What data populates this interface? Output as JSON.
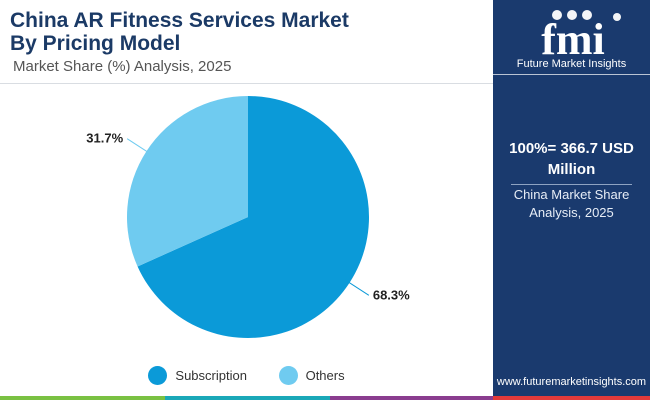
{
  "header": {
    "title_line1": "China AR Fitness Services Market",
    "title_line2": "By Pricing Model",
    "subtitle": "Market Share (%) Analysis, 2025"
  },
  "chart_data": {
    "type": "pie",
    "title": "China AR Fitness Services Market By Pricing Model",
    "subtitle": "Market Share (%) Analysis, 2025",
    "categories": [
      "Subscription",
      "Others"
    ],
    "values": [
      68.3,
      31.7
    ],
    "unit": "%",
    "data_labels": [
      "68.3%",
      "31.7%"
    ],
    "colors": [
      "#0b9ad8",
      "#6fcbf0"
    ],
    "legend_position": "bottom"
  },
  "legend": {
    "items": [
      {
        "label": "Subscription",
        "color": "#0b9ad8"
      },
      {
        "label": "Others",
        "color": "#6fcbf0"
      }
    ]
  },
  "sidebar": {
    "logo_text": "fmi",
    "brand": "Future Market Insights",
    "total_line1": "100%= 366.7 USD",
    "total_line2": "Million",
    "caption_line1": "China Market Share",
    "caption_line2": "Analysis, 2025",
    "url": "www.futuremarketinsights.com"
  },
  "colors": {
    "title": "#1b3a66",
    "sidebar_bg": "#1a3a6e",
    "bottom_bar": [
      "#7ac142",
      "#1aa8b8",
      "#8a3d8f",
      "#e23a3a"
    ]
  }
}
